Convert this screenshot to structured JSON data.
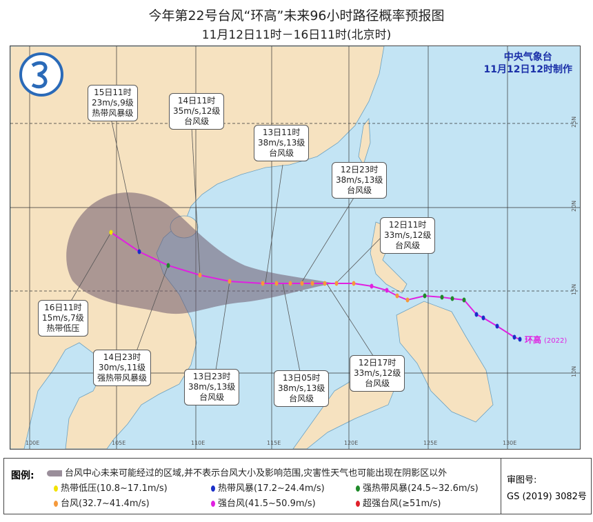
{
  "title": "今年第22号台风“环高”未来96小时路径概率预报图",
  "subtitle": "11月12日11时－16日11时(北京时)",
  "agency": {
    "name": "中央气象台",
    "issued": "11月12日12时制作"
  },
  "typhoon_label": "环高",
  "typhoon_code": "(2022)",
  "lon_labels": [
    "100E",
    "105E",
    "110E",
    "115E",
    "120E",
    "125E",
    "130E"
  ],
  "lat_labels": [
    "25N",
    "20N",
    "15N",
    "10N"
  ],
  "forecast_labels": [
    {
      "time": "15日11时",
      "wind": "23m/s,9级",
      "grade": "热带风暴级"
    },
    {
      "time": "14日11时",
      "wind": "35m/s,12级",
      "grade": "台风级"
    },
    {
      "time": "13日11时",
      "wind": "38m/s,13级",
      "grade": "台风级"
    },
    {
      "time": "12日23时",
      "wind": "38m/s,13级",
      "grade": "台风级"
    },
    {
      "time": "12日11时",
      "wind": "33m/s,12级",
      "grade": "台风级"
    },
    {
      "time": "16日11时",
      "wind": "15m/s,7级",
      "grade": "热带低压"
    },
    {
      "time": "14日23时",
      "wind": "30m/s,11级",
      "grade": "强热带风暴级"
    },
    {
      "time": "13日23时",
      "wind": "38m/s,13级",
      "grade": "台风级"
    },
    {
      "time": "13日05时",
      "wind": "38m/s,13级",
      "grade": "台风级"
    },
    {
      "time": "12日17时",
      "wind": "33m/s,12级",
      "grade": "台风级"
    }
  ],
  "legend": {
    "heading": "图例:",
    "cone_text": "台风中心未来可能经过的区域,并不表示台风大小及影响范围,灾害性天气也可能出现在阴影区以外",
    "items": [
      {
        "label": "热带低压(10.8~17.1m/s)",
        "color": "#f2e200"
      },
      {
        "label": "热带风暴(17.2~24.4m/s)",
        "color": "#1a2fc8"
      },
      {
        "label": "强热带风暴(24.5~32.6m/s)",
        "color": "#1f8a2a"
      },
      {
        "label": "台风(32.7~41.4m/s)",
        "color": "#f59a3c"
      },
      {
        "label": "强台风(41.5~50.9m/s)",
        "color": "#e020e0"
      },
      {
        "label": "超强台风(≥51m/s)",
        "color": "#e0202a"
      }
    ],
    "review_label": "审图号:",
    "review_number": "GS (2019) 3082号"
  },
  "colors": {
    "land": "#f6e2c0",
    "sea": "#c3e4f4",
    "track": "#e020e0",
    "cone": "#7d6e7e"
  }
}
